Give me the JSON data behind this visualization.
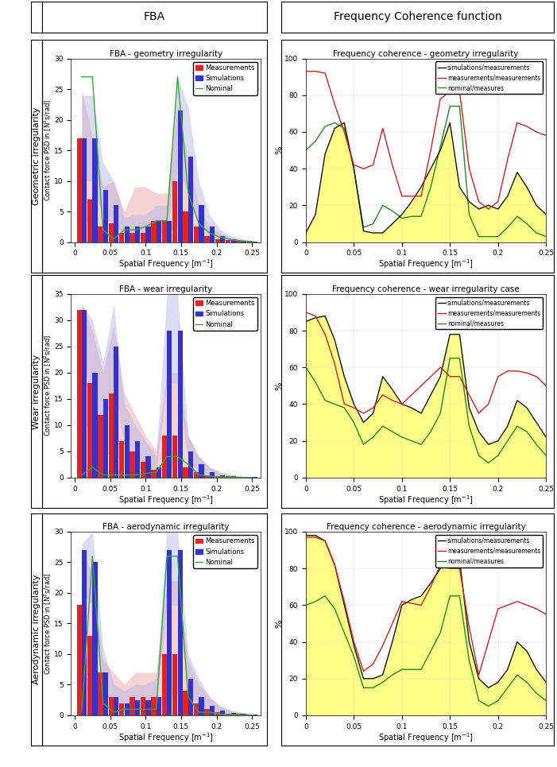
{
  "title_fba": "FBA",
  "title_coherence": "Frequency Coherence function",
  "row_labels": [
    "Geometric irregularity",
    "Wear irregularity",
    "Aerodynamic irregularity"
  ],
  "fba_titles": [
    "FBA - geometry irregularity",
    "FBA - wear irregularity",
    "FBA - aerodynamic irregularity"
  ],
  "coherence_titles": [
    "Frequency coherence - geometry irregularity",
    "Frequency coherence - wear irregularity case",
    "Frequency coherence - aerodynamic irregularity"
  ],
  "fba_ylims": [
    30,
    35,
    30
  ],
  "fba_yticks": [
    [
      0,
      5,
      10,
      15,
      20,
      25,
      30
    ],
    [
      0,
      5,
      10,
      15,
      20,
      25,
      30,
      35
    ],
    [
      0,
      5,
      10,
      15,
      20,
      25,
      30
    ]
  ],
  "spatial_freq": [
    0.01,
    0.025,
    0.04,
    0.055,
    0.07,
    0.085,
    0.1,
    0.115,
    0.13,
    0.145,
    0.16,
    0.175,
    0.19,
    0.205,
    0.22,
    0.235,
    0.25
  ],
  "fba_meas_geo": [
    17,
    7,
    2.5,
    3,
    1.5,
    1.5,
    1.5,
    3.5,
    3.5,
    10,
    5,
    2.5,
    1.0,
    0.5,
    0.3,
    0.2,
    0.1
  ],
  "fba_sim_geo": [
    17,
    17,
    8.5,
    6,
    2.5,
    2.5,
    2.5,
    3.5,
    3.5,
    21.5,
    14,
    6,
    2.5,
    1.0,
    0.5,
    0.2,
    0.1
  ],
  "fba_meas_env_lo_geo": [
    5,
    2,
    0.5,
    1,
    0.5,
    0.5,
    0.5,
    1,
    1,
    3,
    2,
    1,
    0.3,
    0.1,
    0.1,
    0.05,
    0.02
  ],
  "fba_meas_env_hi_geo": [
    25,
    17,
    9,
    10,
    5,
    9,
    9,
    8,
    8,
    23,
    13,
    6,
    2.5,
    1.5,
    0.8,
    0.4,
    0.2
  ],
  "fba_sim_env_lo_geo": [
    10,
    10,
    4,
    3,
    1,
    1,
    1,
    1.5,
    1.5,
    12,
    8,
    3,
    1,
    0.4,
    0.2,
    0.1,
    0.05
  ],
  "fba_sim_env_hi_geo": [
    24,
    24,
    13,
    10,
    4,
    4.5,
    4.5,
    6,
    6,
    27,
    22,
    10,
    4.5,
    2,
    1,
    0.5,
    0.2
  ],
  "fba_nominal_geo": [
    27,
    27,
    2,
    0.5,
    2,
    2,
    2.5,
    3.5,
    3.5,
    27,
    8,
    3,
    1.5,
    0.8,
    0.4,
    0.2,
    0.1
  ],
  "fba_meas_wear": [
    32,
    18,
    12,
    16,
    7,
    5,
    3,
    1.5,
    8,
    8,
    2,
    1,
    0.5,
    0.3,
    0.2,
    0.1,
    0.05
  ],
  "fba_sim_wear": [
    32,
    20,
    15,
    25,
    10,
    7,
    4,
    2,
    28,
    28,
    5,
    2.5,
    1,
    0.5,
    0.3,
    0.1,
    0.05
  ],
  "fba_meas_env_lo_wear": [
    15,
    5,
    4,
    5,
    2,
    2,
    1,
    0.5,
    2,
    2,
    0.5,
    0.3,
    0.1,
    0.1,
    0.05,
    0.03,
    0.01
  ],
  "fba_meas_env_hi_wear": [
    33,
    28,
    20,
    29,
    16,
    12,
    8,
    5,
    20,
    20,
    8,
    4,
    2,
    1,
    0.5,
    0.3,
    0.1
  ],
  "fba_sim_env_lo_wear": [
    25,
    12,
    8,
    18,
    6,
    4,
    2,
    1,
    18,
    18,
    3,
    1.2,
    0.5,
    0.2,
    0.1,
    0.05,
    0.02
  ],
  "fba_sim_env_hi_wear": [
    33,
    30,
    22,
    33,
    14,
    10,
    7,
    4,
    35,
    35,
    8,
    4,
    2,
    1,
    0.6,
    0.2,
    0.1
  ],
  "fba_nominal_wear": [
    0.5,
    2,
    0.5,
    0.5,
    0.5,
    0.5,
    0.8,
    1,
    4,
    4,
    2.5,
    0.5,
    0.3,
    0.1,
    0.05,
    0.03,
    0.01
  ],
  "fba_meas_aero": [
    18,
    13,
    7,
    3,
    2,
    3,
    3,
    3,
    10,
    10,
    4,
    2,
    1,
    0.5,
    0.3,
    0.2,
    0.1
  ],
  "fba_sim_aero": [
    27,
    25,
    7,
    3,
    2,
    2.5,
    2.5,
    3,
    27,
    27,
    6,
    3,
    1.5,
    0.8,
    0.4,
    0.2,
    0.1
  ],
  "fba_meas_env_lo_aero": [
    8,
    5,
    2,
    1,
    0.5,
    1,
    1,
    1,
    3,
    3,
    1.5,
    0.8,
    0.3,
    0.1,
    0.1,
    0.05,
    0.02
  ],
  "fba_meas_env_hi_aero": [
    27,
    23,
    9,
    7,
    5,
    7,
    7,
    7,
    22,
    22,
    9,
    5,
    3,
    1.5,
    0.8,
    0.5,
    0.2
  ],
  "fba_sim_env_lo_aero": [
    20,
    18,
    4,
    1.5,
    1,
    1.5,
    1.5,
    1.5,
    18,
    18,
    3.5,
    1.5,
    0.8,
    0.4,
    0.2,
    0.1,
    0.05
  ],
  "fba_sim_env_hi_aero": [
    28,
    30,
    11,
    5,
    4,
    5,
    5,
    6,
    30,
    30,
    10,
    6,
    3,
    1.5,
    0.8,
    0.4,
    0.2
  ],
  "fba_nominal_aero": [
    0.5,
    26,
    2,
    0.5,
    1,
    1,
    1,
    1,
    26,
    26,
    3,
    0.5,
    0.5,
    0.2,
    0.1,
    0.05,
    0.02
  ],
  "coh_freq": [
    0,
    0.01,
    0.02,
    0.03,
    0.04,
    0.05,
    0.06,
    0.07,
    0.08,
    0.09,
    0.1,
    0.11,
    0.12,
    0.13,
    0.14,
    0.15,
    0.16,
    0.17,
    0.18,
    0.19,
    0.2,
    0.21,
    0.22,
    0.23,
    0.24,
    0.25
  ],
  "coh_sim_geo": [
    5,
    15,
    48,
    62,
    65,
    40,
    6,
    5,
    5,
    10,
    15,
    22,
    30,
    40,
    50,
    65,
    30,
    22,
    18,
    20,
    18,
    25,
    38,
    30,
    20,
    15
  ],
  "coh_meas_geo": [
    93,
    93,
    92,
    75,
    60,
    42,
    40,
    42,
    62,
    42,
    25,
    25,
    25,
    50,
    78,
    82,
    82,
    40,
    22,
    18,
    22,
    45,
    65,
    63,
    60,
    58
  ],
  "coh_nom_geo": [
    50,
    55,
    63,
    65,
    62,
    40,
    8,
    10,
    20,
    17,
    13,
    14,
    14,
    30,
    52,
    74,
    74,
    15,
    3,
    3,
    3,
    8,
    14,
    10,
    5,
    3
  ],
  "coh_sim_wear": [
    85,
    87,
    88,
    75,
    55,
    40,
    30,
    35,
    55,
    48,
    40,
    38,
    35,
    45,
    55,
    78,
    78,
    38,
    25,
    18,
    20,
    28,
    42,
    38,
    30,
    22
  ],
  "coh_meas_wear": [
    90,
    88,
    78,
    62,
    40,
    38,
    35,
    38,
    45,
    42,
    40,
    45,
    50,
    55,
    60,
    55,
    55,
    45,
    35,
    40,
    55,
    58,
    58,
    57,
    55,
    50
  ],
  "coh_nom_wear": [
    60,
    52,
    42,
    40,
    38,
    30,
    18,
    22,
    28,
    25,
    22,
    20,
    18,
    25,
    35,
    65,
    65,
    28,
    12,
    8,
    12,
    20,
    28,
    25,
    18,
    12
  ],
  "coh_sim_aero": [
    98,
    98,
    95,
    82,
    60,
    38,
    20,
    20,
    22,
    40,
    60,
    63,
    65,
    72,
    80,
    85,
    85,
    40,
    20,
    15,
    18,
    25,
    40,
    35,
    25,
    18
  ],
  "coh_meas_aero": [
    97,
    97,
    95,
    82,
    62,
    40,
    24,
    28,
    38,
    50,
    62,
    61,
    60,
    70,
    82,
    80,
    80,
    48,
    22,
    40,
    58,
    60,
    62,
    60,
    58,
    55
  ],
  "coh_nom_aero": [
    60,
    62,
    65,
    58,
    45,
    32,
    15,
    15,
    18,
    22,
    25,
    25,
    25,
    35,
    45,
    65,
    65,
    30,
    8,
    5,
    8,
    15,
    22,
    18,
    12,
    8
  ],
  "bar_width": 0.007,
  "color_meas": "#e32222",
  "color_sim": "#3333cc",
  "color_nominal": "#33aa33",
  "color_fill_meas": "#f0b0b0",
  "color_fill_sim": "#b0b0e8",
  "color_coherence_fill": "#ffff88",
  "color_sim_coh": "#111111",
  "color_meas_coh": "#cc2222",
  "color_nom_coh": "#228822"
}
